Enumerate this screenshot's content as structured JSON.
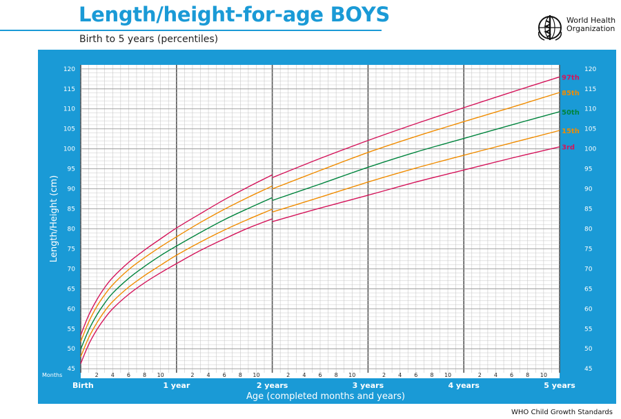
{
  "header": {
    "title": "Length/height-for-age BOYS",
    "subtitle": "Birth to 5 years (percentiles)",
    "org_line1": "World Health",
    "org_line2": "Organization",
    "org_logo_icon": "who-emblem-icon"
  },
  "footer": {
    "source": "WHO Child Growth Standards"
  },
  "colors": {
    "frame": "#1a9ad6",
    "grid_minor": "#c8c8c8",
    "grid_major": "#555555",
    "p97": "#d4145a",
    "p85": "#f08c00",
    "p50": "#00843d",
    "p15": "#f08c00",
    "p3": "#d4145a"
  },
  "chart_data": {
    "type": "line",
    "ylabel": "Length/Height (cm)",
    "xlabel": "Age (completed months and years)",
    "months_label": "Months",
    "ylim": [
      44,
      121
    ],
    "xlim": [
      0,
      60
    ],
    "y_ticks": [
      45,
      50,
      55,
      60,
      65,
      70,
      75,
      80,
      85,
      90,
      95,
      100,
      105,
      110,
      115,
      120
    ],
    "month_ticks": [
      "2",
      "4",
      "6",
      "8",
      "10"
    ],
    "year_labels": [
      "Birth",
      "1 year",
      "2 years",
      "3 years",
      "4 years",
      "5 years"
    ],
    "grid": true,
    "x": [
      0,
      1,
      2,
      3,
      4,
      6,
      8,
      10,
      12,
      15,
      18,
      21,
      24,
      30,
      36,
      42,
      48,
      54,
      60
    ],
    "series": [
      {
        "name": "97th",
        "values": [
          53.4,
          58.4,
          62.2,
          65.3,
          67.8,
          71.6,
          74.7,
          77.5,
          80.2,
          83.8,
          87.3,
          90.5,
          93.5,
          98.3,
          102.8,
          107.0,
          111.0,
          114.9,
          118.7
        ]
      },
      {
        "name": "85th",
        "values": [
          51.8,
          56.7,
          60.5,
          63.5,
          66.0,
          69.8,
          72.8,
          75.5,
          78.0,
          81.6,
          84.9,
          87.9,
          90.7,
          95.3,
          99.8,
          103.8,
          107.5,
          111.1,
          114.8
        ]
      },
      {
        "name": "50th",
        "values": [
          49.9,
          54.7,
          58.4,
          61.4,
          63.9,
          67.6,
          70.6,
          73.3,
          75.7,
          79.1,
          82.3,
          85.1,
          87.8,
          91.9,
          96.1,
          99.9,
          103.3,
          106.7,
          110.0
        ]
      },
      {
        "name": "15th",
        "values": [
          48.0,
          52.8,
          56.4,
          59.4,
          61.8,
          65.4,
          68.3,
          70.9,
          73.4,
          76.7,
          79.7,
          82.4,
          84.9,
          88.6,
          92.4,
          95.9,
          99.1,
          102.2,
          105.3
        ]
      },
      {
        "name": "3rd",
        "values": [
          46.3,
          51.1,
          54.7,
          57.6,
          60.0,
          63.6,
          66.5,
          69.0,
          71.3,
          74.6,
          77.5,
          80.2,
          82.5,
          85.9,
          89.1,
          92.4,
          95.4,
          98.4,
          101.2
        ]
      }
    ],
    "height_after_24_offset": -0.7
  }
}
